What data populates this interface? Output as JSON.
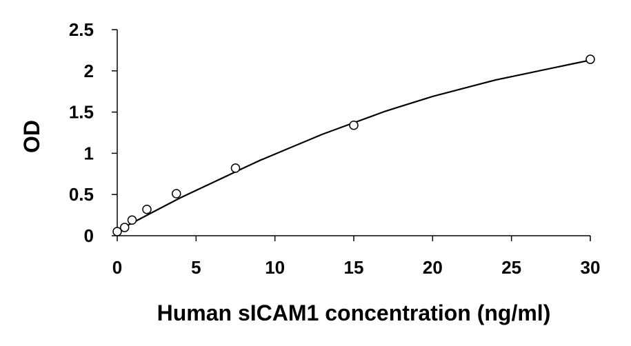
{
  "chart_data": {
    "type": "scatter",
    "title": "",
    "xlabel": "Human sICAM1 concentration (ng/ml)",
    "ylabel": "OD",
    "xlim": [
      0,
      30
    ],
    "ylim": [
      0,
      2.5
    ],
    "x_ticks": [
      "0",
      "5",
      "10",
      "15",
      "20",
      "25",
      "30"
    ],
    "y_ticks": [
      "0",
      "0.5",
      "1",
      "1.5",
      "2",
      "2.5"
    ],
    "grid": false,
    "legend": "none",
    "series": [
      {
        "marker": "open-circle",
        "points": [
          {
            "x": 0.0,
            "y": 0.05
          },
          {
            "x": 0.47,
            "y": 0.1
          },
          {
            "x": 0.94,
            "y": 0.19
          },
          {
            "x": 1.88,
            "y": 0.32
          },
          {
            "x": 3.75,
            "y": 0.51
          },
          {
            "x": 7.5,
            "y": 0.82
          },
          {
            "x": 15.0,
            "y": 1.34
          },
          {
            "x": 30.0,
            "y": 2.14
          }
        ]
      }
    ],
    "fit_curve": {
      "style": "solid-black",
      "x": [
        0,
        1,
        2,
        3,
        4,
        5,
        6,
        7,
        8,
        9,
        10,
        11,
        12,
        13,
        14,
        15,
        16,
        17,
        18,
        19,
        20,
        21,
        22,
        23,
        24,
        25,
        26,
        27,
        28,
        29,
        30
      ],
      "y": [
        0.06,
        0.16,
        0.26,
        0.36,
        0.46,
        0.55,
        0.64,
        0.73,
        0.82,
        0.91,
        0.99,
        1.07,
        1.15,
        1.23,
        1.3,
        1.37,
        1.44,
        1.51,
        1.57,
        1.63,
        1.69,
        1.74,
        1.79,
        1.84,
        1.89,
        1.93,
        1.97,
        2.01,
        2.05,
        2.09,
        2.13
      ]
    }
  }
}
